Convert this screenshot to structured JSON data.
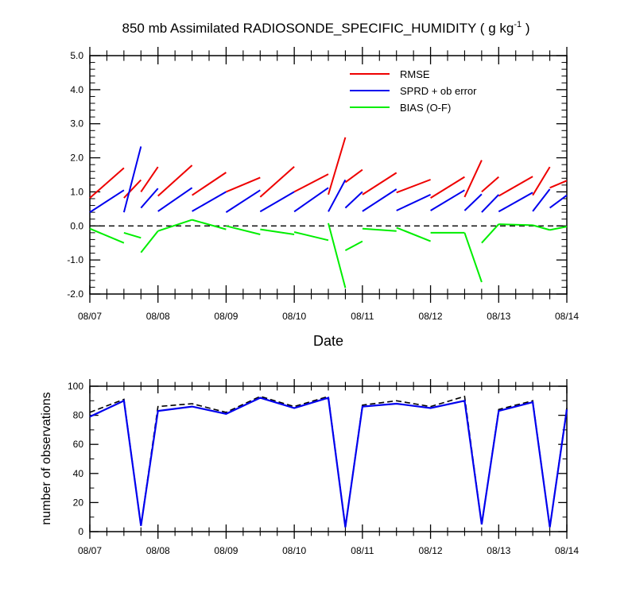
{
  "title": "850 mb Assimilated RADIOSONDE_SPECIFIC_HUMIDITY ( g kg",
  "title_sup": "-1",
  "title_end": " )",
  "chart_data": [
    {
      "type": "line",
      "x_tick_labels": [
        "08/07",
        "08/08",
        "08/09",
        "08/10",
        "08/11",
        "08/12",
        "08/13",
        "08/14"
      ],
      "xlabel": "Date",
      "ylabel": "",
      "xlim": [
        0,
        7
      ],
      "ylim": [
        -2.0,
        5.0
      ],
      "y_tick_labels": [
        "5.0",
        "4.0",
        "3.0",
        "2.0",
        "1.0",
        "0.0",
        "-1.0",
        "-2.0"
      ],
      "y_ticks": [
        5,
        4,
        3,
        2,
        1,
        0,
        -1,
        -2
      ],
      "reference_line": {
        "y": 0,
        "style": "dashed"
      },
      "legend_position": "top-right",
      "colors": {
        "rmse": "#ee0000",
        "sprd": "#0000ee",
        "bias": "#00ee00"
      },
      "series": [
        {
          "name": "RMSE",
          "key": "rmse",
          "segments": [
            [
              [
                0.0,
                0.82
              ],
              [
                0.5,
                1.7
              ]
            ],
            [
              [
                0.5,
                0.82
              ],
              [
                0.75,
                1.35
              ]
            ],
            [
              [
                0.75,
                1.0
              ],
              [
                1.0,
                1.73
              ]
            ],
            [
              [
                1.0,
                0.88
              ],
              [
                1.5,
                1.78
              ]
            ],
            [
              [
                1.5,
                0.9
              ],
              [
                2.0,
                1.57
              ]
            ],
            [
              [
                2.0,
                1.0
              ],
              [
                2.5,
                1.42
              ]
            ],
            [
              [
                2.5,
                0.85
              ],
              [
                3.0,
                1.74
              ]
            ],
            [
              [
                3.0,
                1.0
              ],
              [
                3.5,
                1.52
              ]
            ],
            [
              [
                3.5,
                0.92
              ],
              [
                3.75,
                2.6
              ]
            ],
            [
              [
                3.75,
                1.28
              ],
              [
                4.0,
                1.65
              ]
            ],
            [
              [
                4.0,
                0.92
              ],
              [
                4.5,
                1.56
              ]
            ],
            [
              [
                4.5,
                0.98
              ],
              [
                5.0,
                1.36
              ]
            ],
            [
              [
                5.0,
                0.82
              ],
              [
                5.5,
                1.44
              ]
            ],
            [
              [
                5.5,
                0.85
              ],
              [
                5.75,
                1.93
              ]
            ],
            [
              [
                5.75,
                1.0
              ],
              [
                6.0,
                1.44
              ]
            ],
            [
              [
                6.0,
                0.88
              ],
              [
                6.5,
                1.45
              ]
            ],
            [
              [
                6.5,
                0.9
              ],
              [
                6.75,
                1.73
              ]
            ],
            [
              [
                6.75,
                1.12
              ],
              [
                7.0,
                1.33
              ]
            ]
          ]
        },
        {
          "name": "SPRD + ob error",
          "key": "sprd",
          "segments": [
            [
              [
                0.0,
                0.4
              ],
              [
                0.5,
                1.05
              ]
            ],
            [
              [
                0.5,
                0.4
              ],
              [
                0.75,
                2.33
              ]
            ],
            [
              [
                0.75,
                0.53
              ],
              [
                1.0,
                1.1
              ]
            ],
            [
              [
                1.0,
                0.43
              ],
              [
                1.5,
                1.12
              ]
            ],
            [
              [
                1.5,
                0.43
              ],
              [
                2.0,
                1.0
              ]
            ],
            [
              [
                2.0,
                0.4
              ],
              [
                2.5,
                1.05
              ]
            ],
            [
              [
                2.5,
                0.42
              ],
              [
                3.0,
                1.0
              ]
            ],
            [
              [
                3.0,
                0.42
              ],
              [
                3.5,
                1.12
              ]
            ],
            [
              [
                3.5,
                0.42
              ],
              [
                3.75,
                1.35
              ]
            ],
            [
              [
                3.75,
                0.53
              ],
              [
                4.0,
                1.0
              ]
            ],
            [
              [
                4.0,
                0.43
              ],
              [
                4.5,
                1.08
              ]
            ],
            [
              [
                4.5,
                0.45
              ],
              [
                5.0,
                0.92
              ]
            ],
            [
              [
                5.0,
                0.45
              ],
              [
                5.5,
                1.05
              ]
            ],
            [
              [
                5.5,
                0.45
              ],
              [
                5.75,
                0.93
              ]
            ],
            [
              [
                5.75,
                0.4
              ],
              [
                6.0,
                0.92
              ]
            ],
            [
              [
                6.0,
                0.42
              ],
              [
                6.5,
                0.98
              ]
            ],
            [
              [
                6.5,
                0.43
              ],
              [
                6.75,
                1.08
              ]
            ],
            [
              [
                6.75,
                0.53
              ],
              [
                7.0,
                0.9
              ]
            ]
          ]
        },
        {
          "name": "BIAS (O-F)",
          "key": "bias",
          "segments": [
            [
              [
                0.0,
                -0.08
              ],
              [
                0.5,
                -0.5
              ]
            ],
            [
              [
                0.5,
                -0.2
              ],
              [
                0.75,
                -0.35
              ]
            ],
            [
              [
                0.75,
                -0.78
              ],
              [
                1.0,
                -0.15
              ]
            ],
            [
              [
                1.0,
                -0.15
              ],
              [
                1.5,
                0.18
              ]
            ],
            [
              [
                1.5,
                0.18
              ],
              [
                2.0,
                -0.1
              ]
            ],
            [
              [
                2.0,
                0.0
              ],
              [
                2.5,
                -0.25
              ]
            ],
            [
              [
                2.5,
                -0.1
              ],
              [
                3.0,
                -0.25
              ]
            ],
            [
              [
                3.0,
                -0.18
              ],
              [
                3.5,
                -0.42
              ]
            ],
            [
              [
                3.5,
                0.08
              ],
              [
                3.75,
                -1.82
              ]
            ],
            [
              [
                3.75,
                -0.72
              ],
              [
                4.0,
                -0.45
              ]
            ],
            [
              [
                4.0,
                -0.08
              ],
              [
                4.5,
                -0.15
              ]
            ],
            [
              [
                4.5,
                -0.05
              ],
              [
                5.0,
                -0.45
              ]
            ],
            [
              [
                5.0,
                -0.2
              ],
              [
                5.5,
                -0.2
              ]
            ],
            [
              [
                5.5,
                -0.2
              ],
              [
                5.75,
                -1.65
              ]
            ],
            [
              [
                5.75,
                -0.5
              ],
              [
                6.0,
                0.05
              ]
            ],
            [
              [
                6.0,
                0.05
              ],
              [
                6.5,
                0.02
              ]
            ],
            [
              [
                6.5,
                0.02
              ],
              [
                6.75,
                -0.12
              ]
            ],
            [
              [
                6.75,
                -0.12
              ],
              [
                7.0,
                -0.02
              ]
            ]
          ]
        }
      ]
    },
    {
      "type": "line",
      "x_tick_labels": [
        "08/07",
        "08/08",
        "08/09",
        "08/10",
        "08/11",
        "08/12",
        "08/13",
        "08/14"
      ],
      "xlabel": "",
      "ylabel": "number of observations",
      "xlim": [
        0,
        7
      ],
      "ylim": [
        0,
        100
      ],
      "y_ticks": [
        0,
        20,
        40,
        60,
        80,
        100
      ],
      "y_tick_labels": [
        "0",
        "20",
        "40",
        "60",
        "80",
        "100"
      ],
      "series": [
        {
          "key": "total",
          "style": "dashed",
          "color": "#000000",
          "x": [
            0,
            0.5,
            0.75,
            1.0,
            1.5,
            2.0,
            2.5,
            3.0,
            3.5,
            3.75,
            4.0,
            4.5,
            5.0,
            5.5,
            5.75,
            6.0,
            6.5,
            6.75,
            7.0
          ],
          "values": [
            82,
            91,
            4,
            86,
            88,
            82,
            93,
            86,
            93,
            3,
            87,
            90,
            86,
            93,
            5,
            84,
            90,
            3,
            85
          ]
        },
        {
          "key": "assimilated",
          "style": "solid",
          "color": "#0000ee",
          "x": [
            0,
            0.5,
            0.75,
            1.0,
            1.5,
            2.0,
            2.5,
            3.0,
            3.5,
            3.75,
            4.0,
            4.5,
            5.0,
            5.5,
            5.75,
            6.0,
            6.5,
            6.75,
            7.0
          ],
          "values": [
            79,
            90,
            4,
            83,
            86,
            81,
            92,
            85,
            92,
            3,
            86,
            88,
            85,
            90,
            5,
            83,
            89,
            3,
            84
          ]
        }
      ]
    }
  ]
}
